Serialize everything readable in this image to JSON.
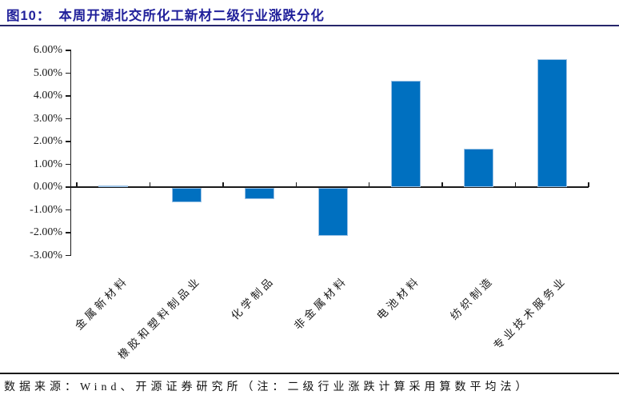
{
  "title": {
    "prefix": "图10：",
    "text": "本周开源北交所化工新材二级行业涨跌分化",
    "color": "#21219B",
    "rule_color": "#26266B"
  },
  "footer": {
    "text": "数据来源：Wind、开源证券研究所（注：二级行业涨跌计算采用算数平均法）",
    "rule_color": "#1A1A1A"
  },
  "chart_data": {
    "type": "bar",
    "title": "本周开源北交所化工新材二级行业涨跌分化",
    "categories": [
      "金属新材料",
      "橡胶和塑料制品业",
      "化学制品",
      "非金属材料",
      "电池材料",
      "纺织制造",
      "专业技术服务业"
    ],
    "values": [
      0.05,
      -0.65,
      -0.5,
      -2.1,
      4.65,
      1.7,
      5.6
    ],
    "unit": "%",
    "xlabel": "",
    "ylabel": "",
    "ylim": [
      -3,
      6
    ],
    "ytick_values": [
      6,
      5,
      4,
      3,
      2,
      1,
      0,
      -1,
      -2,
      -3
    ],
    "ytick_labels": [
      "6.00%",
      "5.00%",
      "4.00%",
      "3.00%",
      "2.00%",
      "1.00%",
      "0.00%",
      "-1.00%",
      "-2.00%",
      "-3.00%"
    ],
    "grid": false,
    "legend": "none",
    "bar_color": "#0070C0",
    "bar_border_color": "#9CC2E5",
    "axis_color": "#1A1A1A"
  }
}
